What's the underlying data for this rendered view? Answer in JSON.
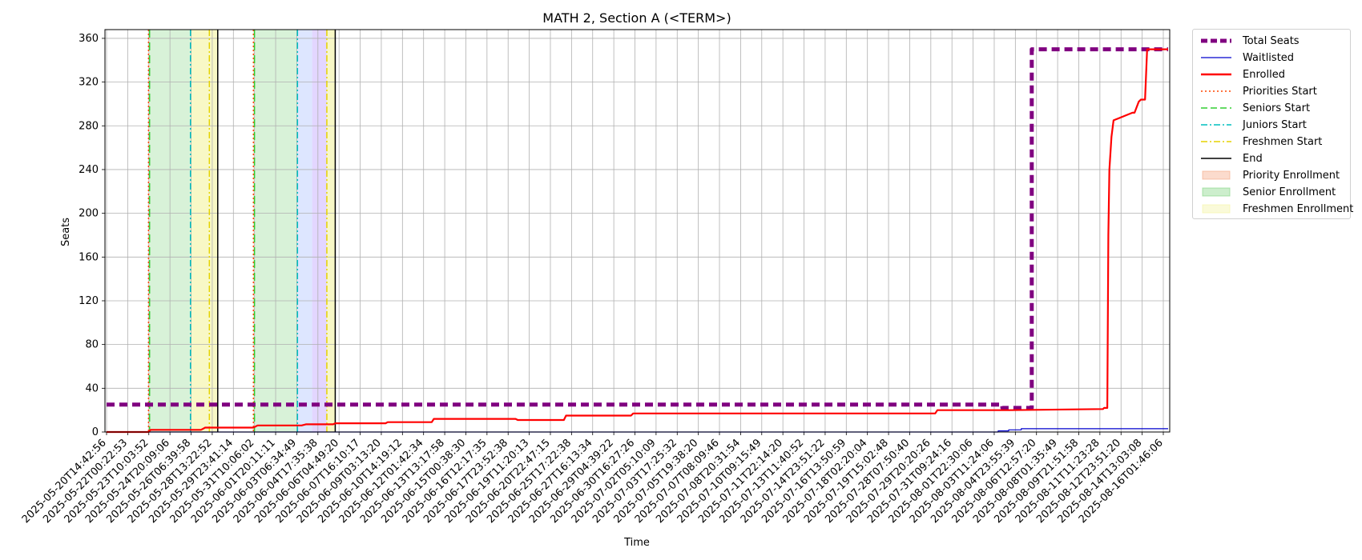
{
  "chart_data": {
    "type": "line",
    "title": "MATH 2, Section A (<TERM>)",
    "xlabel": "Time",
    "ylabel": "Seats",
    "ylim": [
      0,
      368
    ],
    "yticks": [
      0,
      40,
      80,
      120,
      160,
      200,
      240,
      280,
      320,
      360
    ],
    "grid": true,
    "legend_position": "outside-top-right",
    "x_ticks": [
      "2025-05-20T14:42:56",
      "2025-05-22T00:22:53",
      "2025-05-23T10:03:52",
      "2025-05-24T20:09:06",
      "2025-05-26T06:39:58",
      "2025-05-28T13:22:52",
      "2025-05-29T23:41:14",
      "2025-05-31T10:06:02",
      "2025-06-01T20:11:11",
      "2025-06-03T06:34:49",
      "2025-06-04T17:35:38",
      "2025-06-06T04:49:20",
      "2025-06-07T16:10:17",
      "2025-06-09T03:13:20",
      "2025-06-10T14:19:12",
      "2025-06-12T01:42:34",
      "2025-06-13T13:17:58",
      "2025-06-15T00:38:30",
      "2025-06-16T12:17:35",
      "2025-06-17T23:52:38",
      "2025-06-19T11:20:13",
      "2025-06-20T22:47:15",
      "2025-06-25T17:22:38",
      "2025-06-27T16:13:34",
      "2025-06-29T04:39:22",
      "2025-06-30T16:27:26",
      "2025-07-02T05:10:09",
      "2025-07-03T17:25:32",
      "2025-07-05T19:38:20",
      "2025-07-07T08:09:46",
      "2025-07-08T20:31:54",
      "2025-07-10T09:15:49",
      "2025-07-11T22:14:20",
      "2025-07-13T11:40:52",
      "2025-07-14T23:51:22",
      "2025-07-16T13:50:59",
      "2025-07-18T02:20:04",
      "2025-07-19T15:02:48",
      "2025-07-28T07:50:40",
      "2025-07-29T20:20:26",
      "2025-07-31T09:24:16",
      "2025-08-01T22:30:06",
      "2025-08-03T11:24:06",
      "2025-08-04T23:55:39",
      "2025-08-06T12:57:20",
      "2025-08-08T01:35:49",
      "2025-08-09T21:51:58",
      "2025-08-11T11:23:28",
      "2025-08-12T23:51:20",
      "2025-08-14T13:03:08",
      "2025-08-16T01:46:06"
    ],
    "x_range_ticks": [
      0,
      50.6
    ],
    "series": [
      {
        "name": "Total Seats",
        "color": "#800080",
        "style": "dashed",
        "width": "thick",
        "x": [
          0,
          42.7,
          42.7,
          44.1,
          44.1,
          50.6
        ],
        "y": [
          25,
          25,
          22,
          22,
          350,
          350
        ]
      },
      {
        "name": "Waitlisted",
        "color": "#0000cd",
        "style": "solid",
        "width": "thin",
        "x": [
          0,
          42.5,
          42.5,
          43.0,
          43.0,
          43.6,
          43.6,
          50.6
        ],
        "y": [
          0,
          0,
          1,
          1,
          2,
          2,
          3,
          3
        ]
      },
      {
        "name": "Enrolled",
        "color": "#ff0000",
        "style": "solid",
        "width": "medium",
        "x": [
          0,
          2.0,
          2.1,
          4.5,
          4.7,
          7.0,
          7.2,
          9.3,
          9.5,
          10.8,
          10.9,
          13.3,
          13.4,
          15.5,
          15.6,
          19.5,
          19.6,
          21.8,
          21.9,
          25.0,
          25.1,
          39.5,
          39.6,
          43.0,
          47.5,
          47.55,
          47.6,
          47.7,
          47.75,
          47.8,
          47.9,
          48.0,
          48.9,
          49.0,
          49.2,
          49.3,
          49.5,
          49.6,
          50.6
        ],
        "y": [
          0,
          0,
          2,
          2,
          4,
          4,
          6,
          6,
          7,
          7,
          8,
          8,
          9,
          9,
          12,
          12,
          11,
          11,
          15,
          15,
          17,
          17,
          20,
          20,
          21,
          22,
          22,
          22,
          180,
          240,
          270,
          285,
          292,
          292,
          302,
          304,
          304,
          350,
          350
        ]
      }
    ],
    "vlines": [
      {
        "name": "Priorities Start",
        "color": "#ff4500",
        "style": "dotted",
        "x": [
          2.0,
          7.0
        ]
      },
      {
        "name": "Seniors Start",
        "color": "#32cd32",
        "style": "dashed",
        "x": [
          2.05,
          7.05
        ]
      },
      {
        "name": "Juniors Start",
        "color": "#00bfbf",
        "style": "dashdot",
        "x": [
          4.0,
          9.1
        ]
      },
      {
        "name": "Freshmen Start",
        "color": "#e6d200",
        "style": "dashdot",
        "x": [
          4.9,
          10.5
        ]
      },
      {
        "name": "End",
        "color": "#000000",
        "style": "solid",
        "x": [
          5.3,
          10.9
        ]
      }
    ],
    "spans": [
      {
        "name": "Priority Enrollment",
        "color": "#f4a582",
        "alpha": 0.35,
        "ranges": [
          [
            2.0,
            2.05
          ],
          [
            7.0,
            7.05
          ]
        ]
      },
      {
        "name": "Senior Enrollment",
        "color": "#7fd47f",
        "alpha": 0.3,
        "ranges": [
          [
            2.05,
            4.0
          ],
          [
            7.05,
            9.1
          ]
        ]
      },
      {
        "name": "Junior Enrollment",
        "color": "#9db8ff",
        "alpha": 0.35,
        "ranges": [
          [
            9.1,
            9.8
          ]
        ]
      },
      {
        "name": "Sophomore Enrollment",
        "color": "#b899ff",
        "alpha": 0.4,
        "ranges": [
          [
            9.8,
            10.5
          ]
        ]
      },
      {
        "name": "Freshmen Enrollment",
        "color": "#f3f3a0",
        "alpha": 0.6,
        "ranges": [
          [
            4.0,
            5.3
          ],
          [
            10.5,
            10.9
          ]
        ]
      }
    ],
    "legend": [
      {
        "label": "Total Seats",
        "kind": "line",
        "color": "#800080",
        "style": "dashed",
        "width": 5
      },
      {
        "label": "Waitlisted",
        "kind": "line",
        "color": "#0000cd",
        "style": "solid",
        "width": 1.3
      },
      {
        "label": "Enrolled",
        "kind": "line",
        "color": "#ff0000",
        "style": "solid",
        "width": 2.5
      },
      {
        "label": "Priorities Start",
        "kind": "line",
        "color": "#ff4500",
        "style": "dotted",
        "width": 1.5
      },
      {
        "label": "Seniors Start",
        "kind": "line",
        "color": "#32cd32",
        "style": "dashed",
        "width": 1.5
      },
      {
        "label": "Juniors Start",
        "kind": "line",
        "color": "#00bfbf",
        "style": "dashdot",
        "width": 1.5
      },
      {
        "label": "Freshmen Start",
        "kind": "line",
        "color": "#e6d200",
        "style": "dashdot",
        "width": 1.5
      },
      {
        "label": "End",
        "kind": "line",
        "color": "#000000",
        "style": "solid",
        "width": 1.5
      },
      {
        "label": "Priority Enrollment",
        "kind": "patch",
        "color": "#f4a582"
      },
      {
        "label": "Senior Enrollment",
        "kind": "patch",
        "color": "#7fd47f"
      },
      {
        "label": "Freshmen Enrollment",
        "kind": "patch",
        "color": "#f3f3a0"
      }
    ]
  }
}
